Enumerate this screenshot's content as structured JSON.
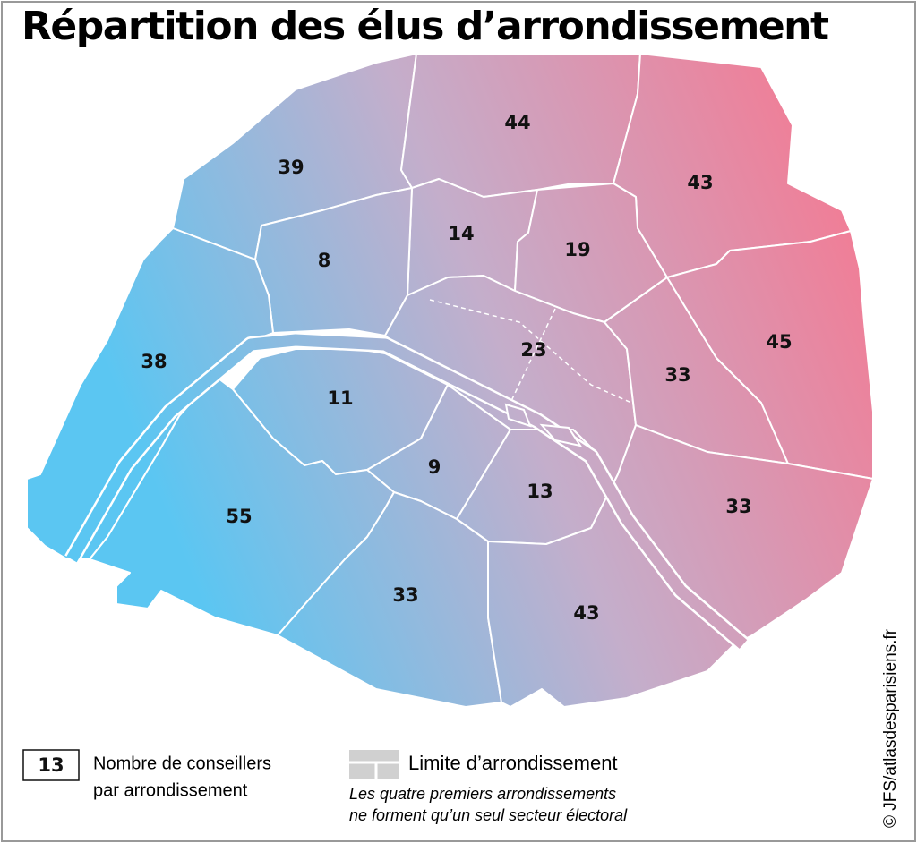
{
  "title": "Répartition des élus d’arrondissement",
  "regions": [
    39,
    44,
    43,
    14,
    19,
    8,
    38,
    23,
    33,
    45,
    11,
    9,
    13,
    33,
    55,
    33,
    43
  ],
  "legend": {
    "sample": 13,
    "sample_lines": [
      "Nombre de conseillers",
      "par arrondissement"
    ],
    "boundary_label": "Limite d’arrondissement",
    "note_lines": [
      "Les quatre premiers arrondissements",
      "ne forment qu’un seul secteur électoral"
    ]
  },
  "credit": "© JFS/atlasdesparisiens.fr"
}
